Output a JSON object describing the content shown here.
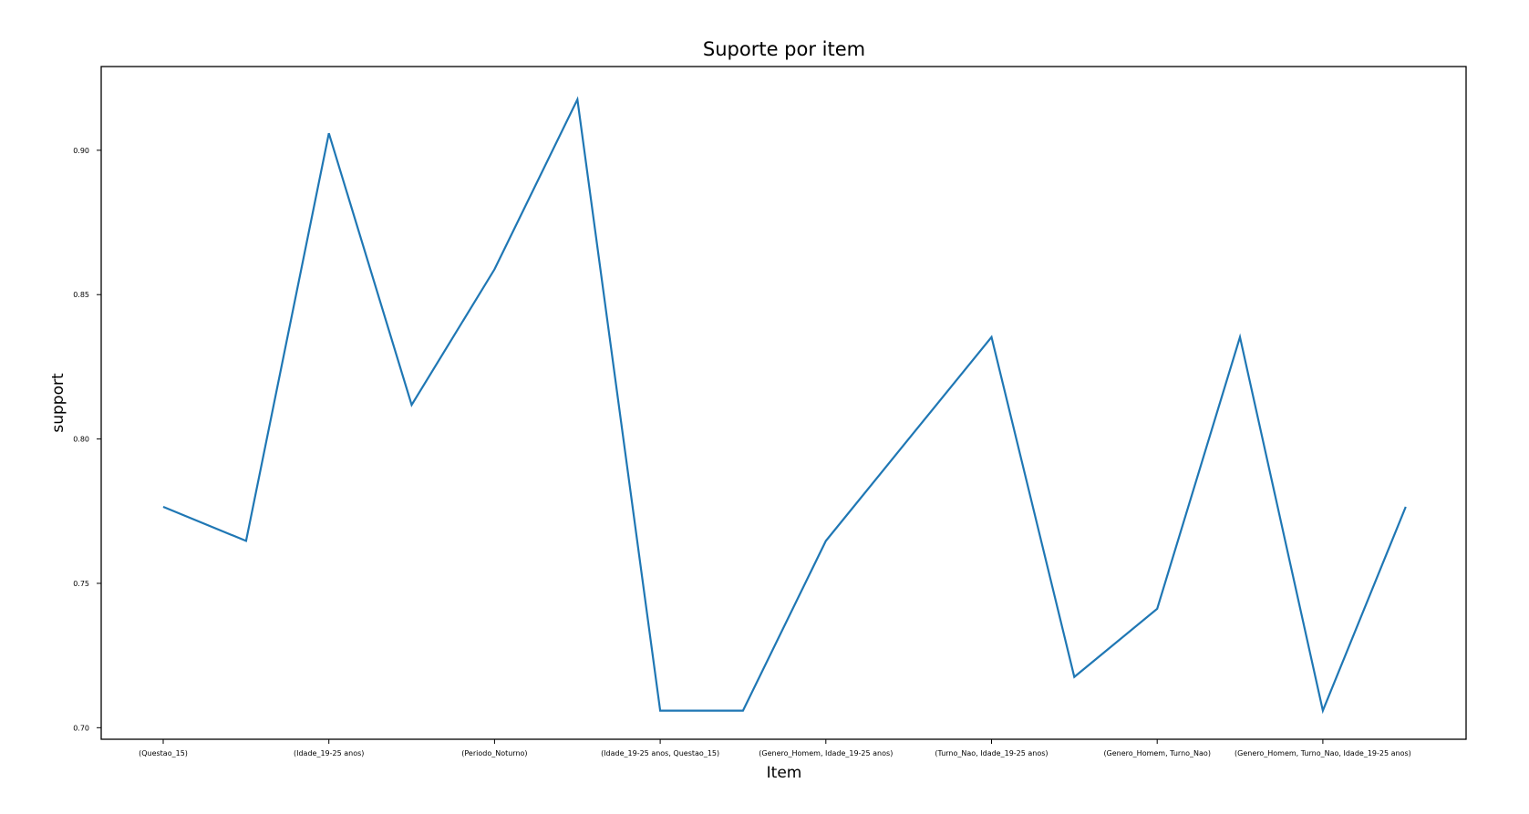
{
  "chart_data": {
    "type": "line",
    "title": "Suporte por item",
    "xlabel": "Item",
    "ylabel": "support",
    "x_tick_labels": [
      "(Questao_15)",
      "(Idade_19-25 anos)",
      "(Periodo_Noturno)",
      "(Idade_19-25 anos, Questao_15)",
      "(Genero_Homem, Idade_19-25 anos)",
      "(Turno_Nao, Idade_19-25 anos)",
      "(Genero_Homem, Turno_Nao)",
      "(Genero_Homem, Turno_Nao, Idade_19-25 anos)"
    ],
    "y_ticks": [
      0.7,
      0.75,
      0.8,
      0.85,
      0.9
    ],
    "y_tick_labels": [
      "0.70",
      "0.75",
      "0.80",
      "0.85",
      "0.90"
    ],
    "ylim": [
      0.696,
      0.929
    ],
    "series": [
      {
        "values": [
          0.7765,
          0.7647,
          0.9059,
          0.8118,
          0.8588,
          0.9176,
          0.7059,
          0.7059,
          0.7647,
          0.8,
          0.8353,
          0.7176,
          0.7412,
          0.8353,
          0.7059,
          0.7765
        ],
        "color": "#1f77b4"
      }
    ],
    "grid": false,
    "legend": "none"
  }
}
